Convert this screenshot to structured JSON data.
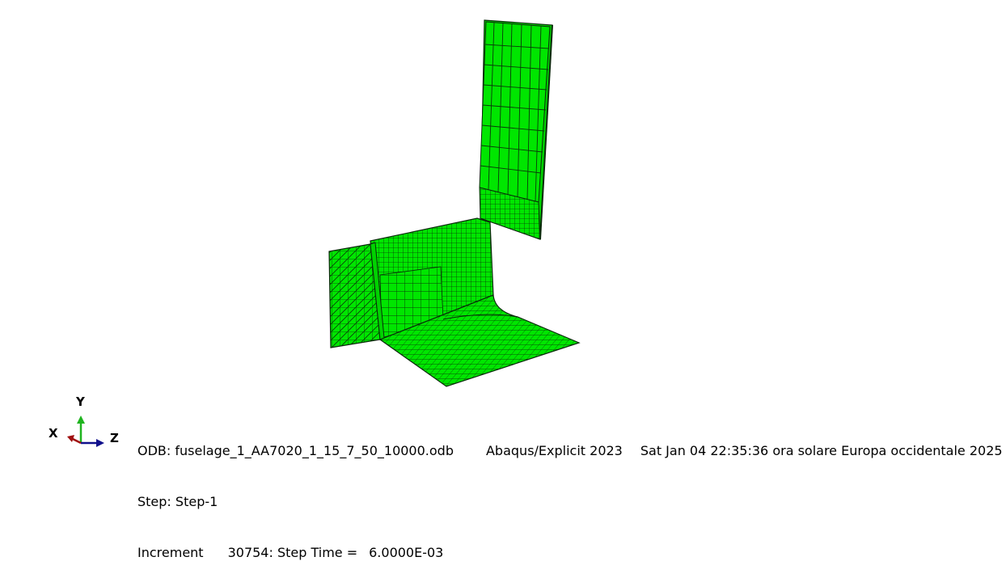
{
  "triad": {
    "axis_y": "Y",
    "axis_x": "X",
    "axis_z": "Z",
    "colors": {
      "y": "#1fb41f",
      "x": "#a01010",
      "z": "#10108c"
    }
  },
  "model": {
    "mesh_color": "#00e600",
    "edge_color": "#0a2a0a"
  },
  "info": {
    "odb_label": "ODB:",
    "odb_file": "fuselage_1_AA7020_1_15_7_50_10000.odb",
    "solver": "Abaqus/Explicit 2023",
    "datetime": "Sat Jan 04 22:35:36 ora solare Europa occidentale 2025",
    "step_label": "Step:",
    "step_name": "Step-1",
    "increment_label": "Increment",
    "increment_value": "30754",
    "step_time_label": ": Step Time =",
    "step_time_value": "6.0000E-03"
  }
}
